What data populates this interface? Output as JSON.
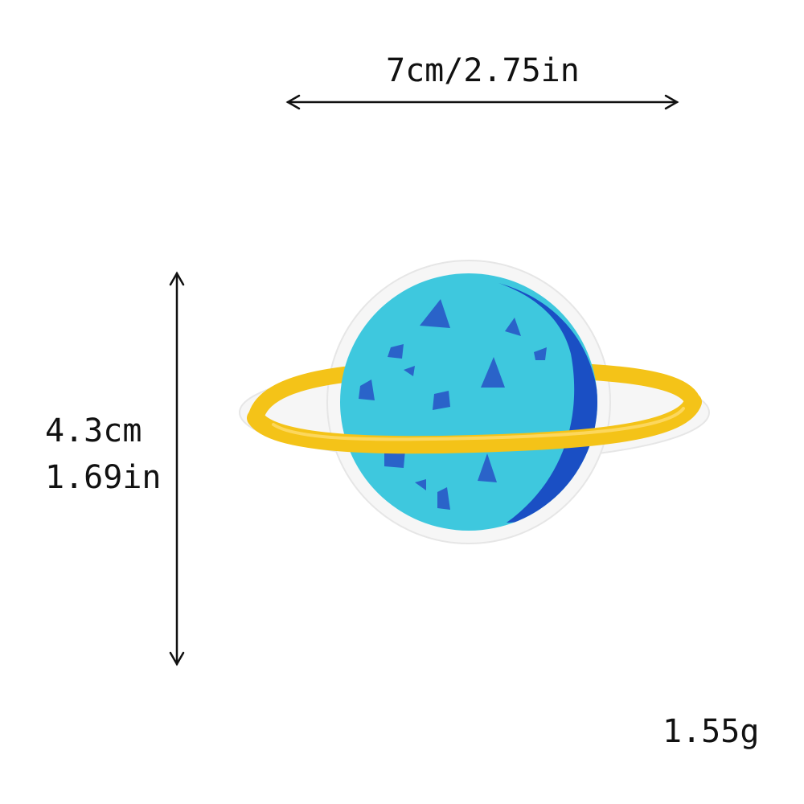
{
  "dimensions": {
    "width_label": "7cm/2.75in",
    "height_label_cm": "4.3cm",
    "height_label_in": "1.69in"
  },
  "weight_label": "1.55g",
  "product": {
    "icon": "planet-patch-icon",
    "colors": {
      "planet": "#3ec8de",
      "planet_shadow": "#1a4fc4",
      "craters": "#2a63c9",
      "ring": "#f4c318",
      "border": "#ffffff",
      "arrows": "#111111"
    }
  }
}
